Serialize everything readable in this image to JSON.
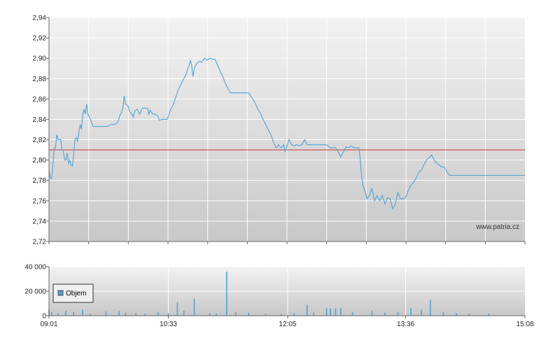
{
  "colors": {
    "price_line": "#4ea3d6",
    "reference_line": "#cc3333",
    "volume_bar": "#4ea3d6",
    "grid": "#ffffff",
    "bg_top": "#f2f2f2",
    "bg_bottom": "#c8c8c8"
  },
  "watermark": "www.patria.cz",
  "legend": {
    "volume_label": "Objem"
  },
  "chart_data": [
    {
      "type": "line",
      "x_kind": "time",
      "xlim": [
        "09:01",
        "15:08"
      ],
      "ylim": [
        2.72,
        2.94
      ],
      "y_ticks": [
        "2,72",
        "2,74",
        "2,76",
        "2,78",
        "2,80",
        "2,82",
        "2,84",
        "2,86",
        "2,88",
        "2,90",
        "2,92",
        "2,94"
      ],
      "y_tick_values": [
        2.72,
        2.74,
        2.76,
        2.78,
        2.8,
        2.82,
        2.84,
        2.86,
        2.88,
        2.9,
        2.92,
        2.94
      ],
      "reference_value": 2.81,
      "grid": true,
      "series": [
        {
          "points": [
            [
              "09:01",
              2.79
            ],
            [
              "09:02",
              2.782
            ],
            [
              "09:03",
              2.782
            ],
            [
              "09:04",
              2.795
            ],
            [
              "09:05",
              2.812
            ],
            [
              "09:06",
              2.812
            ],
            [
              "09:07",
              2.825
            ],
            [
              "09:08",
              2.82
            ],
            [
              "09:10",
              2.82
            ],
            [
              "09:11",
              2.81
            ],
            [
              "09:12",
              2.81
            ],
            [
              "09:13",
              2.8
            ],
            [
              "09:14",
              2.8
            ],
            [
              "09:15",
              2.807
            ],
            [
              "09:16",
              2.797
            ],
            [
              "09:17",
              2.8
            ],
            [
              "09:18",
              2.795
            ],
            [
              "09:19",
              2.794
            ],
            [
              "09:20",
              2.805
            ],
            [
              "09:21",
              2.82
            ],
            [
              "09:22",
              2.822
            ],
            [
              "09:23",
              2.818
            ],
            [
              "09:24",
              2.827
            ],
            [
              "09:25",
              2.835
            ],
            [
              "09:26",
              2.83
            ],
            [
              "09:27",
              2.845
            ],
            [
              "09:28",
              2.85
            ],
            [
              "09:29",
              2.845
            ],
            [
              "09:30",
              2.855
            ],
            [
              "09:31",
              2.845
            ],
            [
              "09:33",
              2.84
            ],
            [
              "09:35",
              2.833
            ],
            [
              "09:38",
              2.833
            ],
            [
              "09:42",
              2.833
            ],
            [
              "09:46",
              2.833
            ],
            [
              "09:49",
              2.835
            ],
            [
              "09:52",
              2.835
            ],
            [
              "09:54",
              2.837
            ],
            [
              "09:56",
              2.845
            ],
            [
              "09:57",
              2.847
            ],
            [
              "09:58",
              2.852
            ],
            [
              "09:59",
              2.863
            ],
            [
              "10:00",
              2.855
            ],
            [
              "10:02",
              2.853
            ],
            [
              "10:03",
              2.848
            ],
            [
              "10:05",
              2.845
            ],
            [
              "10:06",
              2.842
            ],
            [
              "10:07",
              2.848
            ],
            [
              "10:09",
              2.85
            ],
            [
              "10:11",
              2.845
            ],
            [
              "10:13",
              2.851
            ],
            [
              "10:15",
              2.851
            ],
            [
              "10:17",
              2.851
            ],
            [
              "10:18",
              2.845
            ],
            [
              "10:19",
              2.849
            ],
            [
              "10:21",
              2.845
            ],
            [
              "10:23",
              2.845
            ],
            [
              "10:25",
              2.843
            ],
            [
              "10:26",
              2.839
            ],
            [
              "10:28",
              2.84
            ],
            [
              "10:30",
              2.84
            ],
            [
              "10:32",
              2.84
            ],
            [
              "10:33",
              2.843
            ],
            [
              "10:35",
              2.85
            ],
            [
              "10:37",
              2.855
            ],
            [
              "10:39",
              2.863
            ],
            [
              "10:41",
              2.87
            ],
            [
              "10:43",
              2.875
            ],
            [
              "10:45",
              2.88
            ],
            [
              "10:47",
              2.885
            ],
            [
              "10:48",
              2.89
            ],
            [
              "10:49",
              2.893
            ],
            [
              "10:50",
              2.898
            ],
            [
              "10:51",
              2.893
            ],
            [
              "10:52",
              2.882
            ],
            [
              "10:53",
              2.89
            ],
            [
              "10:55",
              2.895
            ],
            [
              "10:57",
              2.897
            ],
            [
              "10:59",
              2.896
            ],
            [
              "11:01",
              2.9
            ],
            [
              "11:03",
              2.898
            ],
            [
              "11:05",
              2.9
            ],
            [
              "11:07",
              2.899
            ],
            [
              "11:09",
              2.899
            ],
            [
              "11:11",
              2.893
            ],
            [
              "11:13",
              2.887
            ],
            [
              "11:15",
              2.882
            ],
            [
              "11:17",
              2.875
            ],
            [
              "11:19",
              2.87
            ],
            [
              "11:21",
              2.866
            ],
            [
              "11:23",
              2.866
            ],
            [
              "11:25",
              2.866
            ],
            [
              "11:30",
              2.866
            ],
            [
              "11:35",
              2.866
            ],
            [
              "11:38",
              2.86
            ],
            [
              "11:40",
              2.856
            ],
            [
              "11:42",
              2.85
            ],
            [
              "11:44",
              2.846
            ],
            [
              "11:46",
              2.84
            ],
            [
              "11:48",
              2.835
            ],
            [
              "11:50",
              2.83
            ],
            [
              "11:52",
              2.825
            ],
            [
              "11:54",
              2.818
            ],
            [
              "11:56",
              2.812
            ],
            [
              "11:58",
              2.815
            ],
            [
              "12:00",
              2.812
            ],
            [
              "12:02",
              2.815
            ],
            [
              "12:03",
              2.808
            ],
            [
              "12:04",
              2.812
            ],
            [
              "12:06",
              2.82
            ],
            [
              "12:08",
              2.815
            ],
            [
              "12:10",
              2.814
            ],
            [
              "12:12",
              2.815
            ],
            [
              "12:14",
              2.814
            ],
            [
              "12:16",
              2.815
            ],
            [
              "12:18",
              2.82
            ],
            [
              "12:20",
              2.815
            ],
            [
              "12:25",
              2.815
            ],
            [
              "12:30",
              2.815
            ],
            [
              "12:35",
              2.815
            ],
            [
              "12:38",
              2.812
            ],
            [
              "12:40",
              2.812
            ],
            [
              "12:42",
              2.812
            ],
            [
              "12:44",
              2.808
            ],
            [
              "12:46",
              2.803
            ],
            [
              "12:48",
              2.808
            ],
            [
              "12:50",
              2.813
            ],
            [
              "12:52",
              2.812
            ],
            [
              "12:54",
              2.814
            ],
            [
              "12:56",
              2.812
            ],
            [
              "12:58",
              2.812
            ],
            [
              "13:00",
              2.812
            ],
            [
              "13:01",
              2.8
            ],
            [
              "13:02",
              2.785
            ],
            [
              "13:03",
              2.775
            ],
            [
              "13:05",
              2.768
            ],
            [
              "13:06",
              2.762
            ],
            [
              "13:08",
              2.765
            ],
            [
              "13:10",
              2.772
            ],
            [
              "13:12",
              2.76
            ],
            [
              "13:14",
              2.765
            ],
            [
              "13:16",
              2.76
            ],
            [
              "13:18",
              2.765
            ],
            [
              "13:20",
              2.757
            ],
            [
              "13:22",
              2.763
            ],
            [
              "13:24",
              2.762
            ],
            [
              "13:26",
              2.752
            ],
            [
              "13:28",
              2.757
            ],
            [
              "13:30",
              2.768
            ],
            [
              "13:32",
              2.762
            ],
            [
              "13:34",
              2.762
            ],
            [
              "13:36",
              2.763
            ],
            [
              "13:38",
              2.77
            ],
            [
              "13:40",
              2.775
            ],
            [
              "13:42",
              2.778
            ],
            [
              "13:44",
              2.782
            ],
            [
              "13:46",
              2.788
            ],
            [
              "13:48",
              2.79
            ],
            [
              "13:50",
              2.795
            ],
            [
              "13:52",
              2.8
            ],
            [
              "13:54",
              2.802
            ],
            [
              "13:56",
              2.805
            ],
            [
              "13:58",
              2.8
            ],
            [
              "14:00",
              2.797
            ],
            [
              "14:02",
              2.795
            ],
            [
              "14:04",
              2.793
            ],
            [
              "14:06",
              2.793
            ],
            [
              "14:08",
              2.788
            ],
            [
              "14:10",
              2.785
            ]
          ]
        }
      ],
      "annotations": [
        "www.patria.cz"
      ]
    },
    {
      "type": "bar",
      "x_kind": "time",
      "xlim": [
        "09:01",
        "15:08"
      ],
      "ylim": [
        0,
        40000
      ],
      "y_ticks": [
        "0",
        "20 000",
        "40 000"
      ],
      "y_tick_values": [
        0,
        20000,
        40000
      ],
      "x_ticks": [
        "09:01",
        "10:33",
        "12:05",
        "13:36",
        "15:08"
      ],
      "legend": [
        "Objem"
      ],
      "grid": true,
      "series": [
        {
          "name": "Objem",
          "points": [
            [
              "09:01",
              5000
            ],
            [
              "09:03",
              3000
            ],
            [
              "09:08",
              2000
            ],
            [
              "09:14",
              4000
            ],
            [
              "09:20",
              3000
            ],
            [
              "09:27",
              5000
            ],
            [
              "09:33",
              1500
            ],
            [
              "09:45",
              3500
            ],
            [
              "09:55",
              4000
            ],
            [
              "10:00",
              2500
            ],
            [
              "10:08",
              2000
            ],
            [
              "10:15",
              1500
            ],
            [
              "10:25",
              3000
            ],
            [
              "10:33",
              2000
            ],
            [
              "10:40",
              11000
            ],
            [
              "10:45",
              4000
            ],
            [
              "10:53",
              14000
            ],
            [
              "11:05",
              2000
            ],
            [
              "11:10",
              1800
            ],
            [
              "11:18",
              36000
            ],
            [
              "11:25",
              3000
            ],
            [
              "11:35",
              2500
            ],
            [
              "11:48",
              1500
            ],
            [
              "12:00",
              1500
            ],
            [
              "12:10",
              2000
            ],
            [
              "12:20",
              9000
            ],
            [
              "12:25",
              2500
            ],
            [
              "12:35",
              6000
            ],
            [
              "12:38",
              6000
            ],
            [
              "12:42",
              6000
            ],
            [
              "12:46",
              6000
            ],
            [
              "12:55",
              3000
            ],
            [
              "13:10",
              4000
            ],
            [
              "13:20",
              2500
            ],
            [
              "13:30",
              3000
            ],
            [
              "13:40",
              6000
            ],
            [
              "13:48",
              5000
            ],
            [
              "13:55",
              13000
            ],
            [
              "14:05",
              3000
            ],
            [
              "14:15",
              2000
            ],
            [
              "14:25",
              1500
            ],
            [
              "14:40",
              1500
            ]
          ]
        }
      ]
    }
  ]
}
